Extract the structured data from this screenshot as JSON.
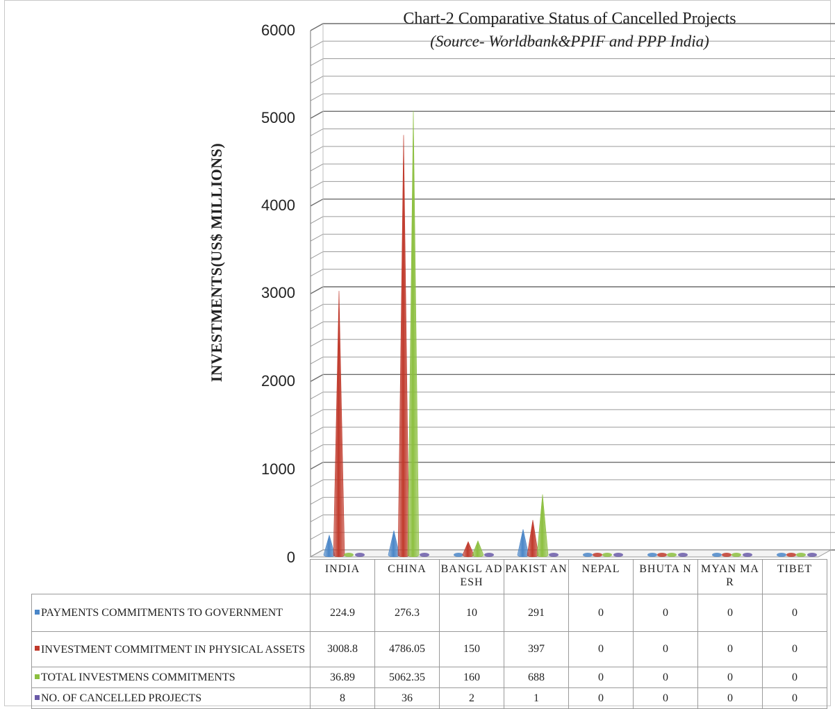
{
  "chart_data": {
    "type": "bar",
    "style": "3d-cone",
    "title": "Chart-2 Comparative Status of Cancelled Projects",
    "subtitle": "(Source- Worldbank&PPIF and PPP India)",
    "ylabel": "INVESTMENTS(US$ MILLIONS)",
    "ylim": [
      0,
      6000
    ],
    "yticks": [
      "0",
      "1000",
      "2000",
      "3000",
      "4000",
      "5000",
      "6000"
    ],
    "grid": true,
    "legend": "table-below",
    "categories": [
      "INDIA",
      "CHINA",
      "BANGLADESH",
      "PAKISTAN",
      "NEPAL",
      "BHUTAN",
      "MYANMAR",
      "TIBET"
    ],
    "category_labels": [
      "INDIA",
      "CHINA",
      "BANGL ADESH",
      "PAKIST AN",
      "NEPAL",
      "BHUTA N",
      "MYAN MAR",
      "TIBET"
    ],
    "series": [
      {
        "name": "PAYMENTS COMMITMENTS TO GOVERNMENT",
        "color": "#4a86c8",
        "values": [
          224.9,
          276.3,
          10,
          291,
          0,
          0,
          0,
          0
        ],
        "labels": [
          "224.9",
          "276.3",
          "10",
          "291",
          "0",
          "0",
          "0",
          "0"
        ]
      },
      {
        "name": "INVESTMENT COMMITMENT IN PHYSICAL ASSETS",
        "color": "#c0392b",
        "values": [
          3008.8,
          4786.05,
          150,
          397,
          0,
          0,
          0,
          0
        ],
        "labels": [
          "3008.8",
          "4786.05",
          "150",
          "397",
          "0",
          "0",
          "0",
          "0"
        ]
      },
      {
        "name": "TOTAL INVESTMENS COMMITMENTS",
        "color": "#8cbf3f",
        "values": [
          36.89,
          5062.35,
          160,
          688,
          0,
          0,
          0,
          0
        ],
        "labels": [
          "36.89",
          "5062.35",
          "160",
          "688",
          "0",
          "0",
          "0",
          "0"
        ]
      },
      {
        "name": "NO. OF CANCELLED PROJECTS",
        "color": "#6a5aa8",
        "values": [
          8,
          36,
          2,
          1,
          0,
          0,
          0,
          0
        ],
        "labels": [
          "8",
          "36",
          "2",
          "1",
          "0",
          "0",
          "0",
          "0"
        ]
      }
    ]
  }
}
